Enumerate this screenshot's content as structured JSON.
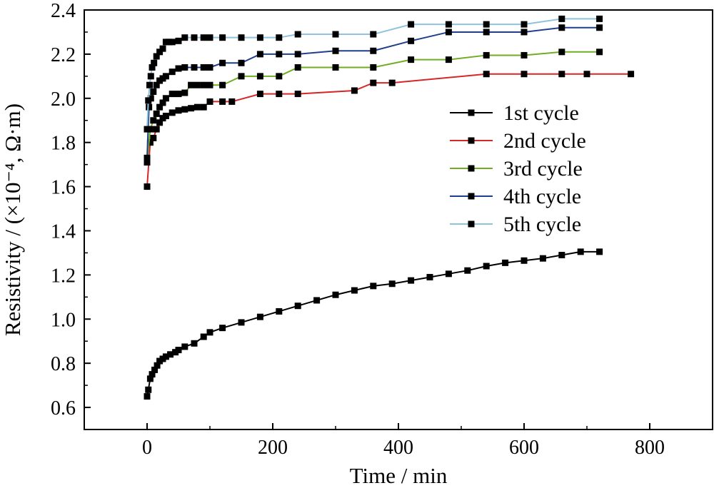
{
  "chart_data": {
    "type": "line",
    "xlabel": "Time / min",
    "ylabel": "Resistivity / (×10⁻⁴, Ω·m)",
    "xlim": [
      -100,
      900
    ],
    "ylim": [
      0.5,
      2.4
    ],
    "xticks": [
      0,
      200,
      400,
      600,
      800
    ],
    "yticks": [
      0.6,
      0.8,
      1.0,
      1.2,
      1.4,
      1.6,
      1.8,
      2.0,
      2.2,
      2.4
    ],
    "xtick_labels": [
      "0",
      "200",
      "400",
      "600",
      "800"
    ],
    "ytick_labels": [
      "0.6",
      "0.8",
      "1.0",
      "1.2",
      "1.4",
      "1.6",
      "1.8",
      "2.0",
      "2.2",
      "2.4"
    ],
    "grid": false,
    "legend_position": "right-center",
    "series": [
      {
        "name": "1st cycle",
        "color": "#000000",
        "x": [
          0,
          2,
          5,
          8,
          12,
          16,
          20,
          25,
          30,
          37,
          45,
          50,
          60,
          75,
          90,
          100,
          120,
          150,
          180,
          210,
          240,
          270,
          300,
          330,
          360,
          390,
          420,
          450,
          480,
          510,
          540,
          570,
          600,
          630,
          660,
          690,
          720
        ],
        "y": [
          0.65,
          0.68,
          0.73,
          0.75,
          0.77,
          0.79,
          0.81,
          0.82,
          0.83,
          0.84,
          0.85,
          0.86,
          0.875,
          0.89,
          0.92,
          0.94,
          0.96,
          0.985,
          1.01,
          1.035,
          1.06,
          1.085,
          1.11,
          1.13,
          1.15,
          1.16,
          1.175,
          1.19,
          1.205,
          1.22,
          1.24,
          1.255,
          1.265,
          1.275,
          1.29,
          1.305,
          1.305
        ]
      },
      {
        "name": "2nd cycle",
        "color": "#d62728",
        "x": [
          0,
          5,
          10,
          15,
          20,
          25,
          30,
          40,
          50,
          60,
          70,
          80,
          90,
          100,
          120,
          135,
          180,
          210,
          240,
          330,
          360,
          390,
          540,
          600,
          660,
          700,
          770
        ],
        "y": [
          1.6,
          1.8,
          1.82,
          1.86,
          1.89,
          1.91,
          1.92,
          1.935,
          1.945,
          1.95,
          1.955,
          1.96,
          1.96,
          1.985,
          1.985,
          1.985,
          2.02,
          2.02,
          2.02,
          2.035,
          2.07,
          2.07,
          2.11,
          2.11,
          2.11,
          2.11,
          2.11
        ]
      },
      {
        "name": "3rd cycle",
        "color": "#6fae22",
        "x": [
          0,
          5,
          10,
          15,
          20,
          25,
          30,
          40,
          50,
          60,
          70,
          80,
          90,
          100,
          120,
          150,
          180,
          210,
          240,
          300,
          360,
          420,
          480,
          540,
          600,
          660,
          720
        ],
        "y": [
          1.71,
          1.86,
          1.9,
          1.93,
          1.96,
          1.98,
          2.0,
          2.02,
          2.02,
          2.025,
          2.06,
          2.06,
          2.06,
          2.06,
          2.06,
          2.1,
          2.1,
          2.1,
          2.14,
          2.14,
          2.14,
          2.175,
          2.175,
          2.195,
          2.195,
          2.21,
          2.21
        ]
      },
      {
        "name": "4th cycle",
        "color": "#1f3e8c",
        "x": [
          0,
          3,
          6,
          10,
          15,
          20,
          25,
          30,
          40,
          50,
          60,
          75,
          90,
          100,
          120,
          150,
          180,
          210,
          240,
          300,
          360,
          420,
          480,
          540,
          600,
          660,
          720
        ],
        "y": [
          1.73,
          1.96,
          2.0,
          2.03,
          2.06,
          2.08,
          2.09,
          2.1,
          2.12,
          2.135,
          2.14,
          2.14,
          2.14,
          2.14,
          2.16,
          2.16,
          2.2,
          2.2,
          2.2,
          2.215,
          2.215,
          2.26,
          2.3,
          2.3,
          2.3,
          2.32,
          2.32
        ]
      },
      {
        "name": "5th cycle",
        "color": "#8ec3df",
        "x": [
          0,
          2,
          4,
          6,
          8,
          11,
          15,
          20,
          25,
          30,
          35,
          40,
          50,
          60,
          75,
          90,
          100,
          120,
          150,
          180,
          210,
          240,
          300,
          360,
          420,
          480,
          540,
          600,
          660,
          720
        ],
        "y": [
          1.86,
          1.99,
          2.06,
          2.1,
          2.14,
          2.16,
          2.19,
          2.21,
          2.225,
          2.255,
          2.255,
          2.255,
          2.26,
          2.275,
          2.275,
          2.275,
          2.275,
          2.275,
          2.275,
          2.275,
          2.275,
          2.29,
          2.29,
          2.29,
          2.335,
          2.335,
          2.335,
          2.335,
          2.36,
          2.36
        ]
      }
    ]
  }
}
